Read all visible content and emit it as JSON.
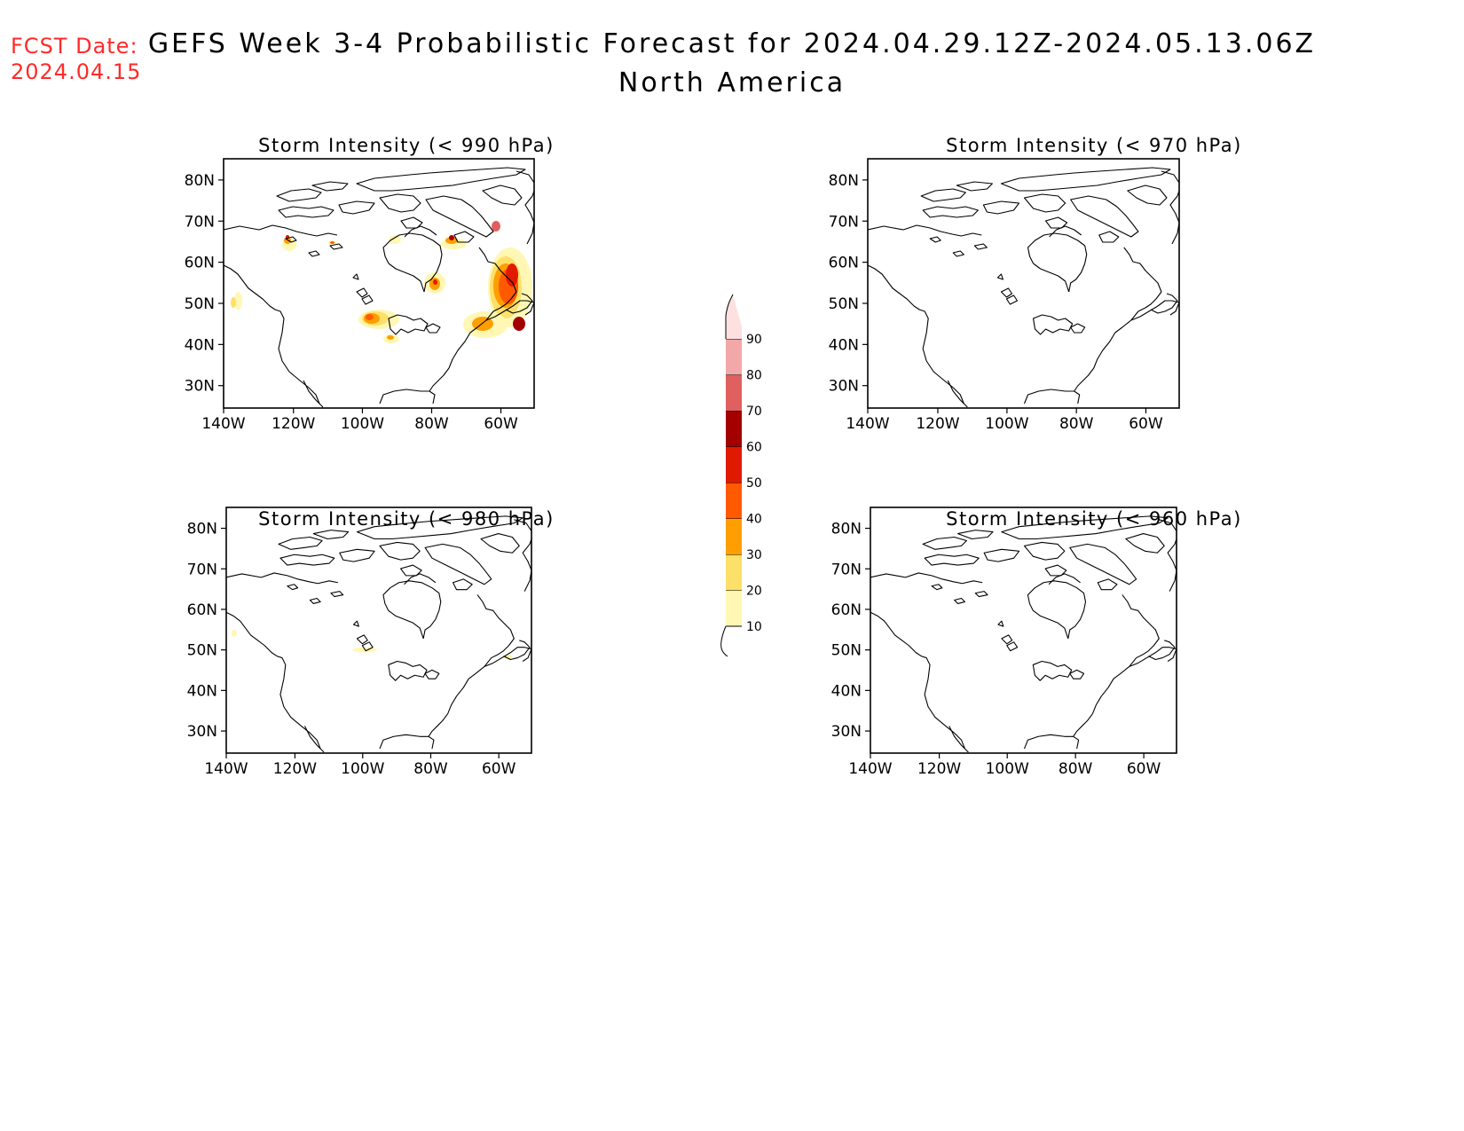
{
  "fcst": {
    "label": "FCST Date:",
    "date": "2024.04.15",
    "color": "#ff2a2a"
  },
  "title": {
    "line1": "GEFS Week 3-4 Probabilistic Forecast for 2024.04.29.12Z-2024.05.13.06Z",
    "line2": "North America"
  },
  "panels": [
    {
      "title": "Storm Intensity (< 990 hPa)"
    },
    {
      "title": "Storm Intensity (< 970 hPa)"
    },
    {
      "title": "Storm Intensity (< 980 hPa)"
    },
    {
      "title": "Storm Intensity (< 960 hPa)"
    }
  ],
  "axes": {
    "lat_ticks": [
      "80N",
      "70N",
      "60N",
      "50N",
      "40N",
      "30N"
    ],
    "lon_ticks": [
      "140W",
      "120W",
      "100W",
      "80W",
      "60W"
    ]
  },
  "colorbar": {
    "labels": [
      "10",
      "20",
      "30",
      "40",
      "50",
      "60",
      "70",
      "80",
      "90"
    ],
    "colors": [
      "#fff7b3",
      "#fde06a",
      "#ff9e00",
      "#ff5a00",
      "#e01a00",
      "#a40000",
      "#e06060",
      "#f2a8a8",
      "#fde0e0"
    ]
  }
}
